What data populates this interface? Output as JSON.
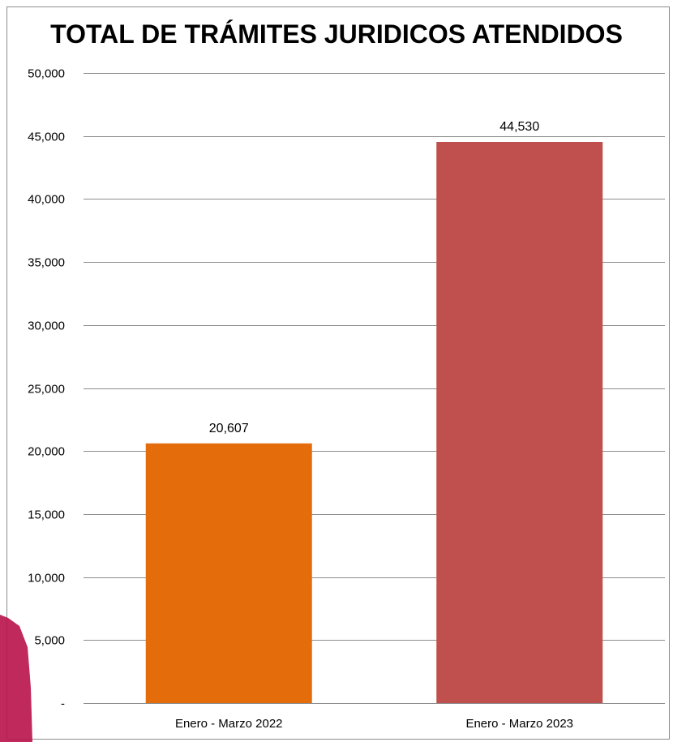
{
  "chart_data": {
    "type": "bar",
    "title": "TOTAL DE TRÁMITES JURIDICOS ATENDIDOS",
    "xlabel": "",
    "ylabel": "",
    "categories": [
      "Enero - Marzo 2022",
      "Enero - Marzo 2023"
    ],
    "values": [
      20607,
      44530
    ],
    "value_labels": [
      "20,607",
      "44,530"
    ],
    "bar_colors": [
      "#E46C0A",
      "#C0504D"
    ],
    "ylim": [
      0,
      50000
    ],
    "yticks": [
      0,
      5000,
      10000,
      15000,
      20000,
      25000,
      30000,
      35000,
      40000,
      45000,
      50000
    ],
    "ytick_labels": [
      "-",
      "5,000",
      "10,000",
      "15,000",
      "20,000",
      "25,000",
      "30,000",
      "35,000",
      "40,000",
      "45,000",
      "50,000"
    ],
    "grid": true,
    "legend": "none"
  },
  "colors": {
    "gridline": "#8c8c8c",
    "frame": "#8c8c8c",
    "accent": "#b8124a"
  }
}
